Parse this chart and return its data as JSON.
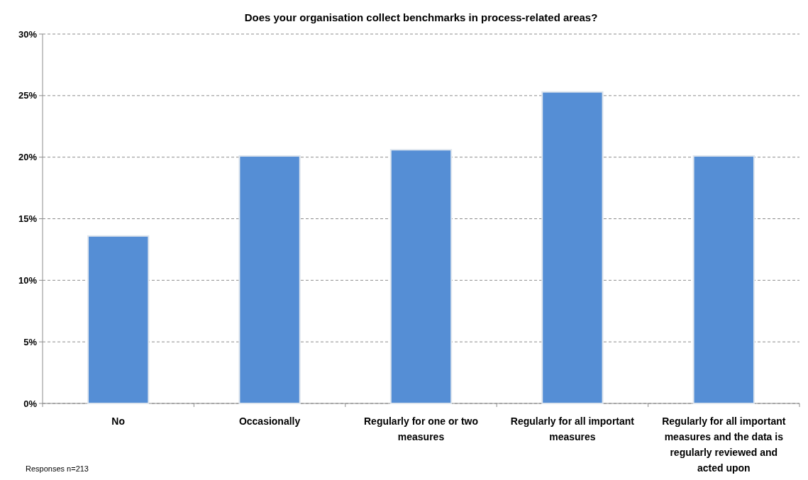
{
  "chart_data": {
    "type": "bar",
    "title": "Does your organisation collect benchmarks in process-related areas?",
    "categories": [
      "No",
      "Occasionally",
      "Regularly for one or two measures",
      "Regularly for all important measures",
      "Regularly for all important measures and the data is regularly reviewed and acted upon"
    ],
    "values": [
      13.6,
      20.1,
      20.6,
      25.3,
      20.1
    ],
    "color": "#558ed5",
    "ylim": [
      0,
      30
    ],
    "yticks": [
      {
        "value": 0,
        "label": "0%"
      },
      {
        "value": 5,
        "label": "5%"
      },
      {
        "value": 10,
        "label": "10%"
      },
      {
        "value": 15,
        "label": "15%"
      },
      {
        "value": 20,
        "label": "20%"
      },
      {
        "value": 25,
        "label": "25%"
      },
      {
        "value": 30,
        "label": "30%"
      }
    ],
    "grid": "y",
    "annotations": [
      "Responses n=213"
    ]
  }
}
